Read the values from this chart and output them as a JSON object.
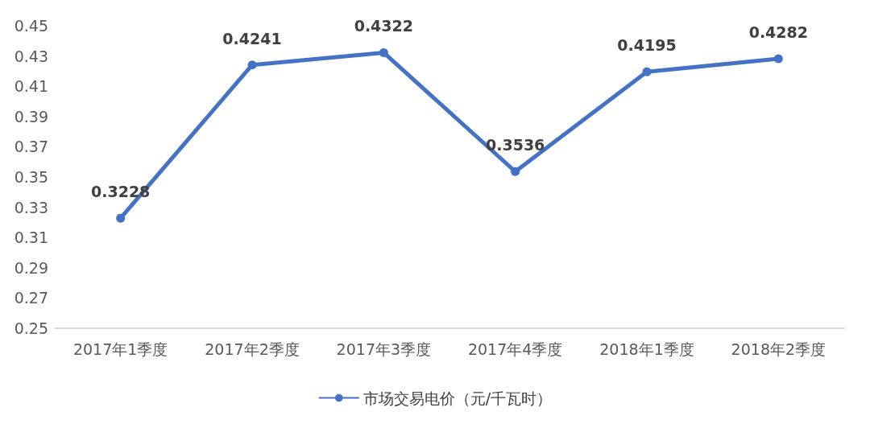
{
  "chart_data": {
    "type": "line",
    "categories": [
      "2017年1季度",
      "2017年2季度",
      "2017年3季度",
      "2017年4季度",
      "2018年1季度",
      "2018年2季度"
    ],
    "series": [
      {
        "name": "市场交易电价（元/千瓦时）",
        "color": "#4472c4",
        "values": [
          0.3228,
          0.4241,
          0.4322,
          0.3536,
          0.4195,
          0.4282
        ]
      }
    ],
    "ylim": [
      0.25,
      0.45
    ],
    "yticks": [
      0.25,
      0.27,
      0.29,
      0.31,
      0.33,
      0.35,
      0.37,
      0.39,
      0.41,
      0.43,
      0.45
    ],
    "grid": false,
    "legend": "bottom",
    "marker": "circle",
    "line_style": "solid",
    "data_labels": true
  }
}
